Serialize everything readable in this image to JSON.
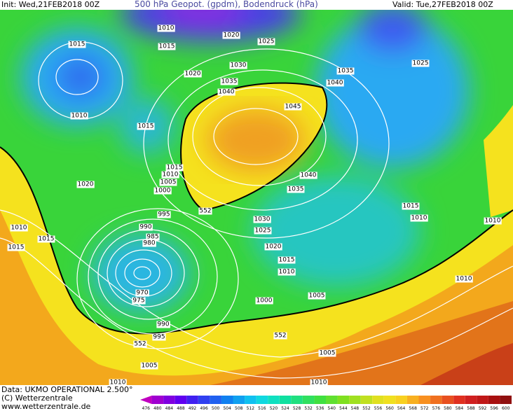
{
  "header": {
    "init": "Init: Wed,21FEB2018 00Z",
    "title": "500 hPa Geopot. (gpdm), Bodendruck (hPa)",
    "valid": "Valid: Tue,27FEB2018 00Z"
  },
  "isobar_labels": [
    "1010",
    "1015",
    "1020",
    "1025",
    "1015",
    "1020",
    "1030",
    "1035",
    "1035",
    "1040",
    "1025",
    "1040",
    "1010",
    "1015",
    "1045",
    "1015",
    "1010",
    "1005",
    "1000",
    "1040",
    "1035",
    "1020",
    "552",
    "995",
    "1030",
    "1025",
    "1015",
    "1010",
    "1010",
    "1010",
    "990",
    "985",
    "980",
    "1015",
    "1015",
    "1020",
    "1015",
    "1010",
    "1010",
    "970",
    "975",
    "1000",
    "1005",
    "990",
    "995",
    "552",
    "552",
    "1005",
    "1005",
    "1010",
    "1010"
  ],
  "footer": {
    "data": "Data: UKMO OPERATIONAL 2.500°",
    "copyright": "(C) Wetterzentrale",
    "url": "www.wetterzentrale.de"
  },
  "colorbar": {
    "labels": [
      "476",
      "480",
      "484",
      "488",
      "492",
      "496",
      "500",
      "504",
      "508",
      "512",
      "516",
      "520",
      "524",
      "528",
      "532",
      "536",
      "540",
      "544",
      "548",
      "552",
      "556",
      "560",
      "564",
      "568",
      "572",
      "576",
      "580",
      "584",
      "588",
      "592",
      "596",
      "600"
    ]
  }
}
